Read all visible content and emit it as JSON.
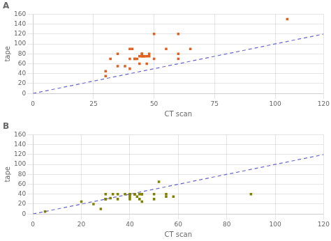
{
  "chart_data": [
    {
      "type": "scatter",
      "title": "A",
      "xlabel": "CT scan",
      "ylabel": "tape",
      "series": [
        {
          "type": "line",
          "line_style": "dashed",
          "color": "#6666cc",
          "x": [
            0,
            120
          ],
          "values": [
            0,
            120
          ]
        },
        {
          "type": "scatter",
          "marker": "square",
          "color": "#E06020",
          "x": [
            30,
            32,
            35,
            38,
            40,
            40,
            40,
            41,
            42,
            43,
            44,
            44,
            45,
            45,
            45,
            45,
            46,
            46,
            47,
            47,
            48,
            48,
            50,
            55,
            60,
            60,
            65,
            50,
            30,
            35,
            42
          ],
          "values": [
            35,
            70,
            80,
            55,
            50,
            70,
            90,
            90,
            70,
            70,
            75,
            60,
            75,
            75,
            80,
            80,
            75,
            75,
            75,
            60,
            75,
            80,
            120,
            90,
            80,
            120,
            90,
            70,
            45,
            55,
            70
          ]
        },
        {
          "type": "scatter",
          "marker": "square",
          "color": "#E06020",
          "x": [
            60,
            105
          ],
          "values": [
            70,
            150
          ]
        }
      ],
      "xlim": [
        0,
        120
      ],
      "ylim": [
        0,
        160
      ],
      "xticks": [
        0,
        25,
        50,
        75,
        100,
        120
      ],
      "yticks": [
        0,
        20,
        40,
        60,
        80,
        100,
        120,
        140,
        160
      ],
      "grid": true
    },
    {
      "type": "scatter",
      "title": "B",
      "xlabel": "CT scan",
      "ylabel": "tape",
      "series": [
        {
          "type": "line",
          "line_style": "dashed",
          "color": "#6666cc",
          "x": [
            0,
            120
          ],
          "values": [
            0,
            120
          ]
        },
        {
          "type": "scatter",
          "marker": "square",
          "color": "#808000",
          "x": [
            5,
            20,
            25,
            28,
            30,
            30,
            30,
            32,
            33,
            35,
            35,
            38,
            40,
            40,
            40,
            40,
            40,
            42,
            42,
            42,
            43,
            44,
            44,
            45,
            45,
            45,
            50,
            50,
            52,
            55,
            55,
            58,
            90
          ],
          "values": [
            5,
            25,
            20,
            10,
            30,
            30,
            40,
            32,
            40,
            30,
            40,
            40,
            30,
            35,
            40,
            40,
            40,
            40,
            40,
            40,
            35,
            30,
            40,
            25,
            40,
            40,
            40,
            30,
            65,
            35,
            40,
            35,
            40
          ]
        }
      ],
      "xlim": [
        0,
        120
      ],
      "ylim": [
        0,
        160
      ],
      "xticks": [
        0,
        20,
        40,
        60,
        80,
        100,
        120
      ],
      "yticks": [
        0,
        20,
        40,
        60,
        80,
        100,
        120,
        140,
        160
      ],
      "grid": true
    }
  ]
}
